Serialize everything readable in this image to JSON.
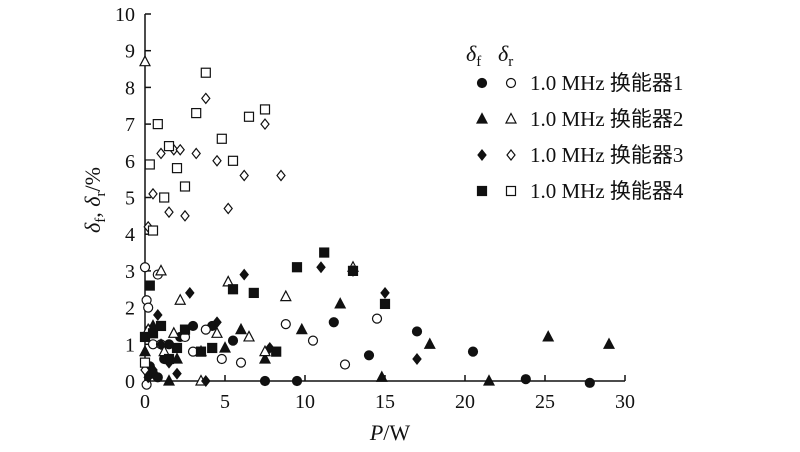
{
  "chart_data": {
    "type": "scatter",
    "xlabel": "P/W",
    "ylabel": "δf, δr/%",
    "xlim": [
      0,
      30
    ],
    "ylim": [
      0,
      10
    ],
    "xticks": [
      "0",
      "5",
      "10",
      "15",
      "20",
      "25",
      "30"
    ],
    "yticks": [
      "0",
      "1",
      "2",
      "3",
      "4",
      "5",
      "6",
      "7",
      "8",
      "9",
      "10"
    ],
    "legend": {
      "placement": "top-right",
      "header_f": "δf",
      "header_r": "δr",
      "entries": [
        {
          "label": "1.0 MHz 换能器1",
          "marker": "circle"
        },
        {
          "label": "1.0 MHz 换能器2",
          "marker": "triangle"
        },
        {
          "label": "1.0 MHz 换能器3",
          "marker": "diamond"
        },
        {
          "label": "1.0 MHz 换能器4",
          "marker": "square"
        }
      ]
    },
    "series": [
      {
        "marker": "circle",
        "fill": "filled",
        "points": [
          [
            0.3,
            0.4
          ],
          [
            0.5,
            0.2
          ],
          [
            0.8,
            0.1
          ],
          [
            1.2,
            0.6
          ],
          [
            1.5,
            1.0
          ],
          [
            2.2,
            1.2
          ],
          [
            3.0,
            1.5
          ],
          [
            4.2,
            1.5
          ],
          [
            5.5,
            1.1
          ],
          [
            7.5,
            0.0
          ],
          [
            9.5,
            0.0
          ],
          [
            11.8,
            1.6
          ],
          [
            14.0,
            0.7
          ],
          [
            17.0,
            1.35
          ],
          [
            20.5,
            0.8
          ],
          [
            23.8,
            0.05
          ],
          [
            27.8,
            -0.05
          ]
        ]
      },
      {
        "marker": "circle",
        "fill": "open",
        "points": [
          [
            0.0,
            3.1
          ],
          [
            0.1,
            2.2
          ],
          [
            0.2,
            2.0
          ],
          [
            0.3,
            1.4
          ],
          [
            0.5,
            1.0
          ],
          [
            0.8,
            2.9
          ],
          [
            1.0,
            1.0
          ],
          [
            2.5,
            1.2
          ],
          [
            3.0,
            0.8
          ],
          [
            3.8,
            1.4
          ],
          [
            4.8,
            0.6
          ],
          [
            6.0,
            0.5
          ],
          [
            8.8,
            1.55
          ],
          [
            10.5,
            1.1
          ],
          [
            12.5,
            0.45
          ],
          [
            14.5,
            1.7
          ],
          [
            0.1,
            -0.1
          ]
        ]
      },
      {
        "marker": "triangle",
        "fill": "filled",
        "points": [
          [
            0.0,
            0.8
          ],
          [
            0.5,
            1.5
          ],
          [
            1.5,
            0.0
          ],
          [
            2.0,
            0.6
          ],
          [
            3.5,
            0.8
          ],
          [
            5.0,
            0.9
          ],
          [
            6.0,
            1.4
          ],
          [
            7.5,
            0.6
          ],
          [
            9.8,
            1.4
          ],
          [
            12.2,
            2.1
          ],
          [
            14.8,
            0.1
          ],
          [
            17.8,
            1.0
          ],
          [
            21.5,
            0.0
          ],
          [
            25.2,
            1.2
          ],
          [
            29.0,
            1.0
          ]
        ]
      },
      {
        "marker": "triangle",
        "fill": "open",
        "points": [
          [
            0.0,
            8.7
          ],
          [
            0.2,
            1.4
          ],
          [
            1.0,
            3.0
          ],
          [
            1.2,
            0.8
          ],
          [
            1.8,
            1.3
          ],
          [
            2.2,
            2.2
          ],
          [
            3.5,
            0.0
          ],
          [
            4.5,
            1.3
          ],
          [
            5.2,
            2.7
          ],
          [
            6.5,
            1.2
          ],
          [
            7.5,
            0.8
          ],
          [
            8.8,
            2.3
          ],
          [
            13.0,
            3.1
          ]
        ]
      },
      {
        "marker": "diamond",
        "fill": "filled",
        "points": [
          [
            0.2,
            0.1
          ],
          [
            0.5,
            0.3
          ],
          [
            0.8,
            1.8
          ],
          [
            1.0,
            1.0
          ],
          [
            1.5,
            0.5
          ],
          [
            2.0,
            0.2
          ],
          [
            2.8,
            2.4
          ],
          [
            3.8,
            0.0
          ],
          [
            4.5,
            1.6
          ],
          [
            6.2,
            2.9
          ],
          [
            7.8,
            0.9
          ],
          [
            11.0,
            3.1
          ],
          [
            13.0,
            3.0
          ],
          [
            15.0,
            2.4
          ],
          [
            17.0,
            0.6
          ]
        ]
      },
      {
        "marker": "diamond",
        "fill": "open",
        "points": [
          [
            0.0,
            0.3
          ],
          [
            0.2,
            4.2
          ],
          [
            0.5,
            5.1
          ],
          [
            1.0,
            6.2
          ],
          [
            1.5,
            4.6
          ],
          [
            1.8,
            6.3
          ],
          [
            2.2,
            6.3
          ],
          [
            2.5,
            4.5
          ],
          [
            3.2,
            6.2
          ],
          [
            3.8,
            7.7
          ],
          [
            4.5,
            6.0
          ],
          [
            5.2,
            4.7
          ],
          [
            6.2,
            5.6
          ],
          [
            7.5,
            7.0
          ],
          [
            8.5,
            5.6
          ]
        ]
      },
      {
        "marker": "square",
        "fill": "filled",
        "points": [
          [
            0.0,
            1.2
          ],
          [
            0.3,
            2.6
          ],
          [
            0.5,
            1.3
          ],
          [
            1.0,
            1.5
          ],
          [
            1.5,
            0.6
          ],
          [
            2.0,
            0.9
          ],
          [
            2.5,
            1.4
          ],
          [
            3.5,
            0.8
          ],
          [
            4.2,
            0.9
          ],
          [
            5.5,
            2.5
          ],
          [
            6.8,
            2.4
          ],
          [
            8.2,
            0.8
          ],
          [
            9.5,
            3.1
          ],
          [
            11.2,
            3.5
          ],
          [
            13.0,
            3.0
          ],
          [
            15.0,
            2.1
          ]
        ]
      },
      {
        "marker": "square",
        "fill": "open",
        "points": [
          [
            0.0,
            0.5
          ],
          [
            0.3,
            5.9
          ],
          [
            0.5,
            4.1
          ],
          [
            0.8,
            7.0
          ],
          [
            1.2,
            5.0
          ],
          [
            1.5,
            6.4
          ],
          [
            2.0,
            5.8
          ],
          [
            2.5,
            5.3
          ],
          [
            3.2,
            7.3
          ],
          [
            3.8,
            8.4
          ],
          [
            4.8,
            6.6
          ],
          [
            5.5,
            6.0
          ],
          [
            6.5,
            7.2
          ],
          [
            7.5,
            7.4
          ]
        ]
      }
    ]
  }
}
